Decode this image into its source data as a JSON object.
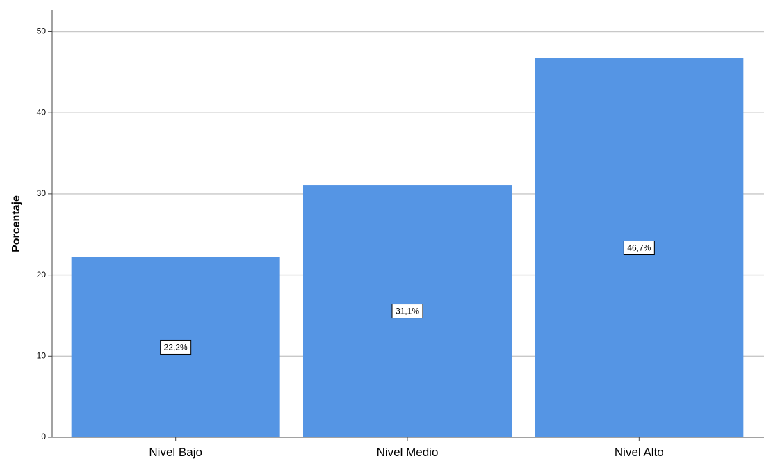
{
  "chart_data": {
    "type": "bar",
    "categories": [
      "Nivel Bajo",
      "Nivel Medio",
      "Nivel Alto"
    ],
    "values": [
      22.2,
      31.1,
      46.7
    ],
    "data_labels": [
      "22,2%",
      "31,1%",
      "46,7%"
    ],
    "title": "",
    "xlabel": "",
    "ylabel": "Porcentaje",
    "ylim": [
      0,
      52.5
    ],
    "yticks": [
      0,
      10,
      20,
      30,
      40,
      50
    ],
    "grid": true,
    "bar_color": "#5595e4",
    "grid_color": "#c8c8c8"
  }
}
